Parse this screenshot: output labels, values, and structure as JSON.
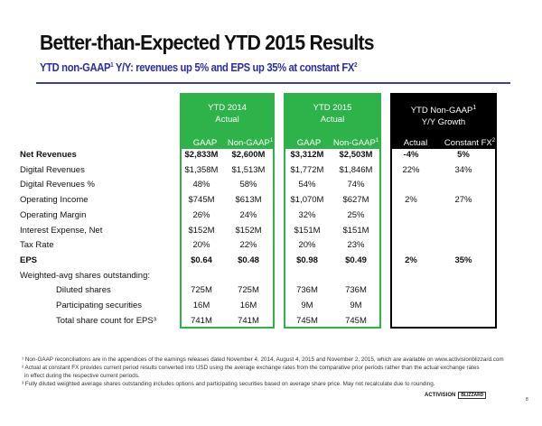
{
  "title": "Better-than-Expected YTD 2015 Results",
  "subtitle": {
    "text": "YTD non-GAAP",
    "sup1": "1",
    "text2": " Y/Y: revenues up 5% and EPS up 35% at constant FX",
    "sup2": "2"
  },
  "groups": [
    {
      "line1": "YTD 2014",
      "line2": "Actual",
      "sub": [
        "GAAP",
        "Non-GAAP"
      ],
      "color": "#2db34a"
    },
    {
      "line1": "YTD 2015",
      "line2": "Actual",
      "sub": [
        "GAAP",
        "Non-GAAP"
      ],
      "color": "#2db34a"
    },
    {
      "line1": "YTD Non-GAAP",
      "line2": "Y/Y Growth",
      "sub": [
        "Actual",
        "Constant FX"
      ],
      "color": "#000000"
    }
  ],
  "rows": [
    {
      "label": "Net Revenues",
      "bold": true,
      "values": [
        "$2,833M",
        "$2,600M",
        "$3,312M",
        "$2,503M",
        "-4%",
        "5%"
      ]
    },
    {
      "label": "Digital Revenues",
      "values": [
        "$1,358M",
        "$1,513M",
        "$1,772M",
        "$1,846M",
        "22%",
        "34%"
      ]
    },
    {
      "label": "Digital Revenues %",
      "values": [
        "48%",
        "58%",
        "54%",
        "74%",
        "",
        ""
      ]
    },
    {
      "label": "Operating Income",
      "values": [
        "$745M",
        "$613M",
        "$1,070M",
        "$627M",
        "2%",
        "27%"
      ]
    },
    {
      "label": "Operating Margin",
      "values": [
        "26%",
        "24%",
        "32%",
        "25%",
        "",
        ""
      ]
    },
    {
      "label": "Interest Expense, Net",
      "values": [
        "$152M",
        "$152M",
        "$151M",
        "$151M",
        "",
        ""
      ]
    },
    {
      "label": "Tax Rate",
      "values": [
        "20%",
        "22%",
        "20%",
        "23%",
        "",
        ""
      ]
    },
    {
      "label": "EPS",
      "bold": true,
      "values": [
        "$0.64",
        "$0.48",
        "$0.98",
        "$0.49",
        "2%",
        "35%"
      ]
    },
    {
      "label": "Weighted-avg shares outstanding:",
      "values": [
        "",
        "",
        "",
        "",
        "",
        ""
      ]
    },
    {
      "label": "Diluted shares",
      "indent": true,
      "values": [
        "725M",
        "725M",
        "736M",
        "736M",
        "",
        ""
      ]
    },
    {
      "label": "Participating securities",
      "indent": true,
      "values": [
        "16M",
        "16M",
        "9M",
        "9M",
        "",
        ""
      ]
    },
    {
      "label": "Total share count for EPS³",
      "indent": true,
      "values": [
        "741M",
        "741M",
        "745M",
        "745M",
        "",
        ""
      ]
    }
  ],
  "footnotes": [
    "¹ Non-GAAP reconciliations are in the appendices of the earnings releases dated November 4, 2014, August 4, 2015 and November 2, 2015, which are available on www.activisionblizzard.com",
    "² Actual at constant FX provides current period results converted into USD using the average exchange rates from the comparative prior periods rather than the actual exchange rates",
    "   in effect during the respective current periods.",
    "³ Fully diluted weighted average shares outstanding includes options and participating securities based on average share price. May not recalculate due to rounding."
  ],
  "logo": {
    "left": "ACTIVISION",
    "right": "BLIZZARD"
  },
  "page_number": "8"
}
